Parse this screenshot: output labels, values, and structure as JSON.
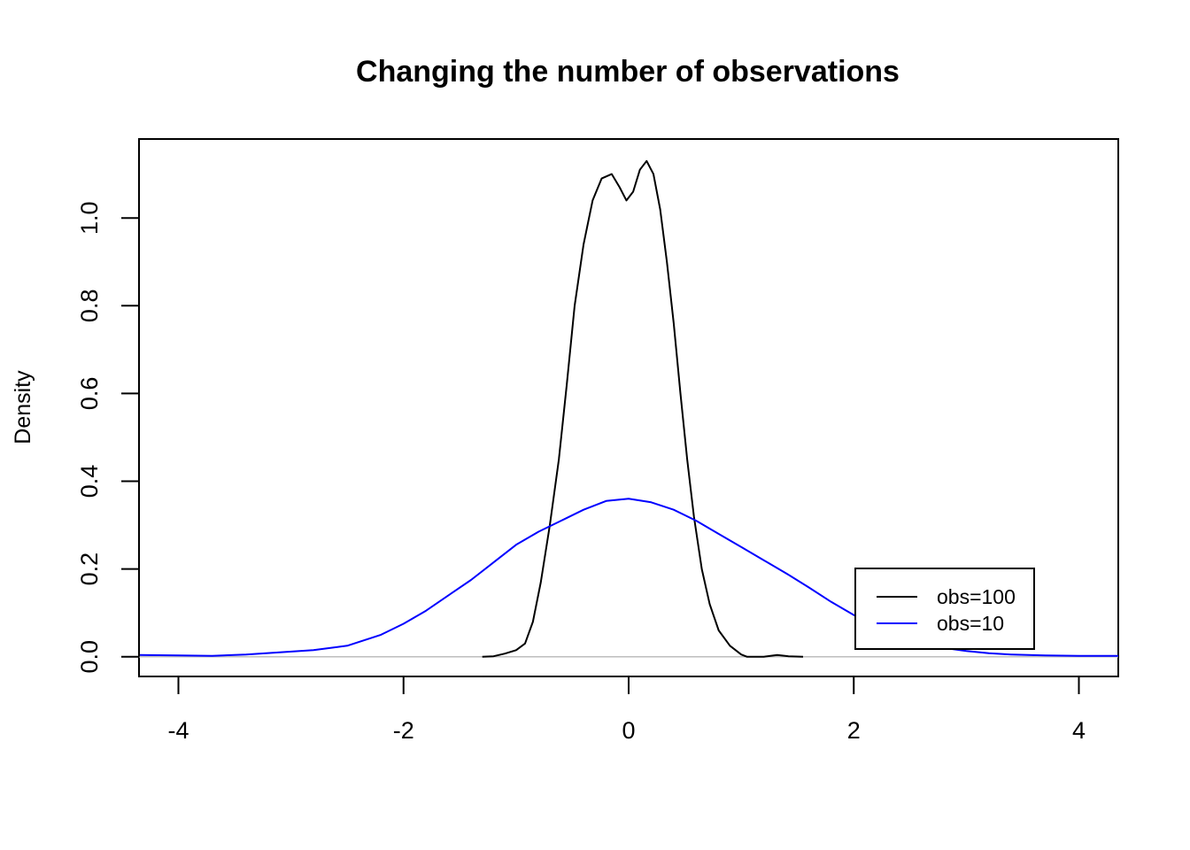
{
  "chart_data": {
    "type": "line",
    "title": "Changing the number of observations",
    "xlabel": "",
    "ylabel": "Density",
    "xlim": [
      -4.35,
      4.35
    ],
    "ylim": [
      -0.045,
      1.18
    ],
    "xticks": [
      -4,
      -2,
      0,
      2,
      4
    ],
    "yticks": [
      0.0,
      0.2,
      0.4,
      0.6,
      0.8,
      1.0
    ],
    "xtick_labels": [
      "-4",
      "-2",
      "0",
      "2",
      "4"
    ],
    "ytick_labels": [
      "0.0",
      "0.2",
      "0.4",
      "0.6",
      "0.8",
      "1.0"
    ],
    "grid": false,
    "baseline": 0,
    "legend": {
      "position": "bottom-right",
      "entries": [
        "obs=100",
        "obs=10"
      ]
    },
    "series": [
      {
        "name": "obs=100",
        "color": "#000000",
        "points": [
          [
            -1.3,
            0.0
          ],
          [
            -1.2,
            0.001
          ],
          [
            -1.1,
            0.007
          ],
          [
            -1.0,
            0.015
          ],
          [
            -0.92,
            0.03
          ],
          [
            -0.85,
            0.08
          ],
          [
            -0.78,
            0.17
          ],
          [
            -0.7,
            0.3
          ],
          [
            -0.62,
            0.45
          ],
          [
            -0.55,
            0.62
          ],
          [
            -0.48,
            0.8
          ],
          [
            -0.4,
            0.94
          ],
          [
            -0.32,
            1.04
          ],
          [
            -0.24,
            1.09
          ],
          [
            -0.15,
            1.1
          ],
          [
            -0.08,
            1.07
          ],
          [
            -0.02,
            1.04
          ],
          [
            0.04,
            1.06
          ],
          [
            0.1,
            1.11
          ],
          [
            0.16,
            1.13
          ],
          [
            0.22,
            1.1
          ],
          [
            0.28,
            1.02
          ],
          [
            0.34,
            0.9
          ],
          [
            0.4,
            0.76
          ],
          [
            0.46,
            0.6
          ],
          [
            0.52,
            0.45
          ],
          [
            0.58,
            0.32
          ],
          [
            0.65,
            0.2
          ],
          [
            0.72,
            0.12
          ],
          [
            0.8,
            0.06
          ],
          [
            0.9,
            0.025
          ],
          [
            1.0,
            0.005
          ],
          [
            1.05,
            0.0
          ],
          [
            1.2,
            0.0
          ],
          [
            1.32,
            0.004
          ],
          [
            1.42,
            0.001
          ],
          [
            1.55,
            0.0
          ]
        ]
      },
      {
        "name": "obs=10",
        "color": "#0000ff",
        "points": [
          [
            -4.35,
            0.004
          ],
          [
            -4.0,
            0.003
          ],
          [
            -3.7,
            0.002
          ],
          [
            -3.4,
            0.005
          ],
          [
            -3.1,
            0.01
          ],
          [
            -2.8,
            0.015
          ],
          [
            -2.5,
            0.025
          ],
          [
            -2.2,
            0.05
          ],
          [
            -2.0,
            0.075
          ],
          [
            -1.8,
            0.105
          ],
          [
            -1.6,
            0.14
          ],
          [
            -1.4,
            0.175
          ],
          [
            -1.2,
            0.215
          ],
          [
            -1.0,
            0.255
          ],
          [
            -0.8,
            0.285
          ],
          [
            -0.6,
            0.31
          ],
          [
            -0.4,
            0.335
          ],
          [
            -0.2,
            0.355
          ],
          [
            0.0,
            0.36
          ],
          [
            0.2,
            0.352
          ],
          [
            0.4,
            0.335
          ],
          [
            0.6,
            0.31
          ],
          [
            0.8,
            0.28
          ],
          [
            1.0,
            0.25
          ],
          [
            1.2,
            0.22
          ],
          [
            1.4,
            0.19
          ],
          [
            1.6,
            0.158
          ],
          [
            1.8,
            0.125
          ],
          [
            2.0,
            0.095
          ],
          [
            2.2,
            0.068
          ],
          [
            2.4,
            0.045
          ],
          [
            2.6,
            0.03
          ],
          [
            2.8,
            0.02
          ],
          [
            3.0,
            0.013
          ],
          [
            3.2,
            0.008
          ],
          [
            3.4,
            0.005
          ],
          [
            3.7,
            0.003
          ],
          [
            4.0,
            0.002
          ],
          [
            4.35,
            0.002
          ]
        ]
      }
    ]
  }
}
